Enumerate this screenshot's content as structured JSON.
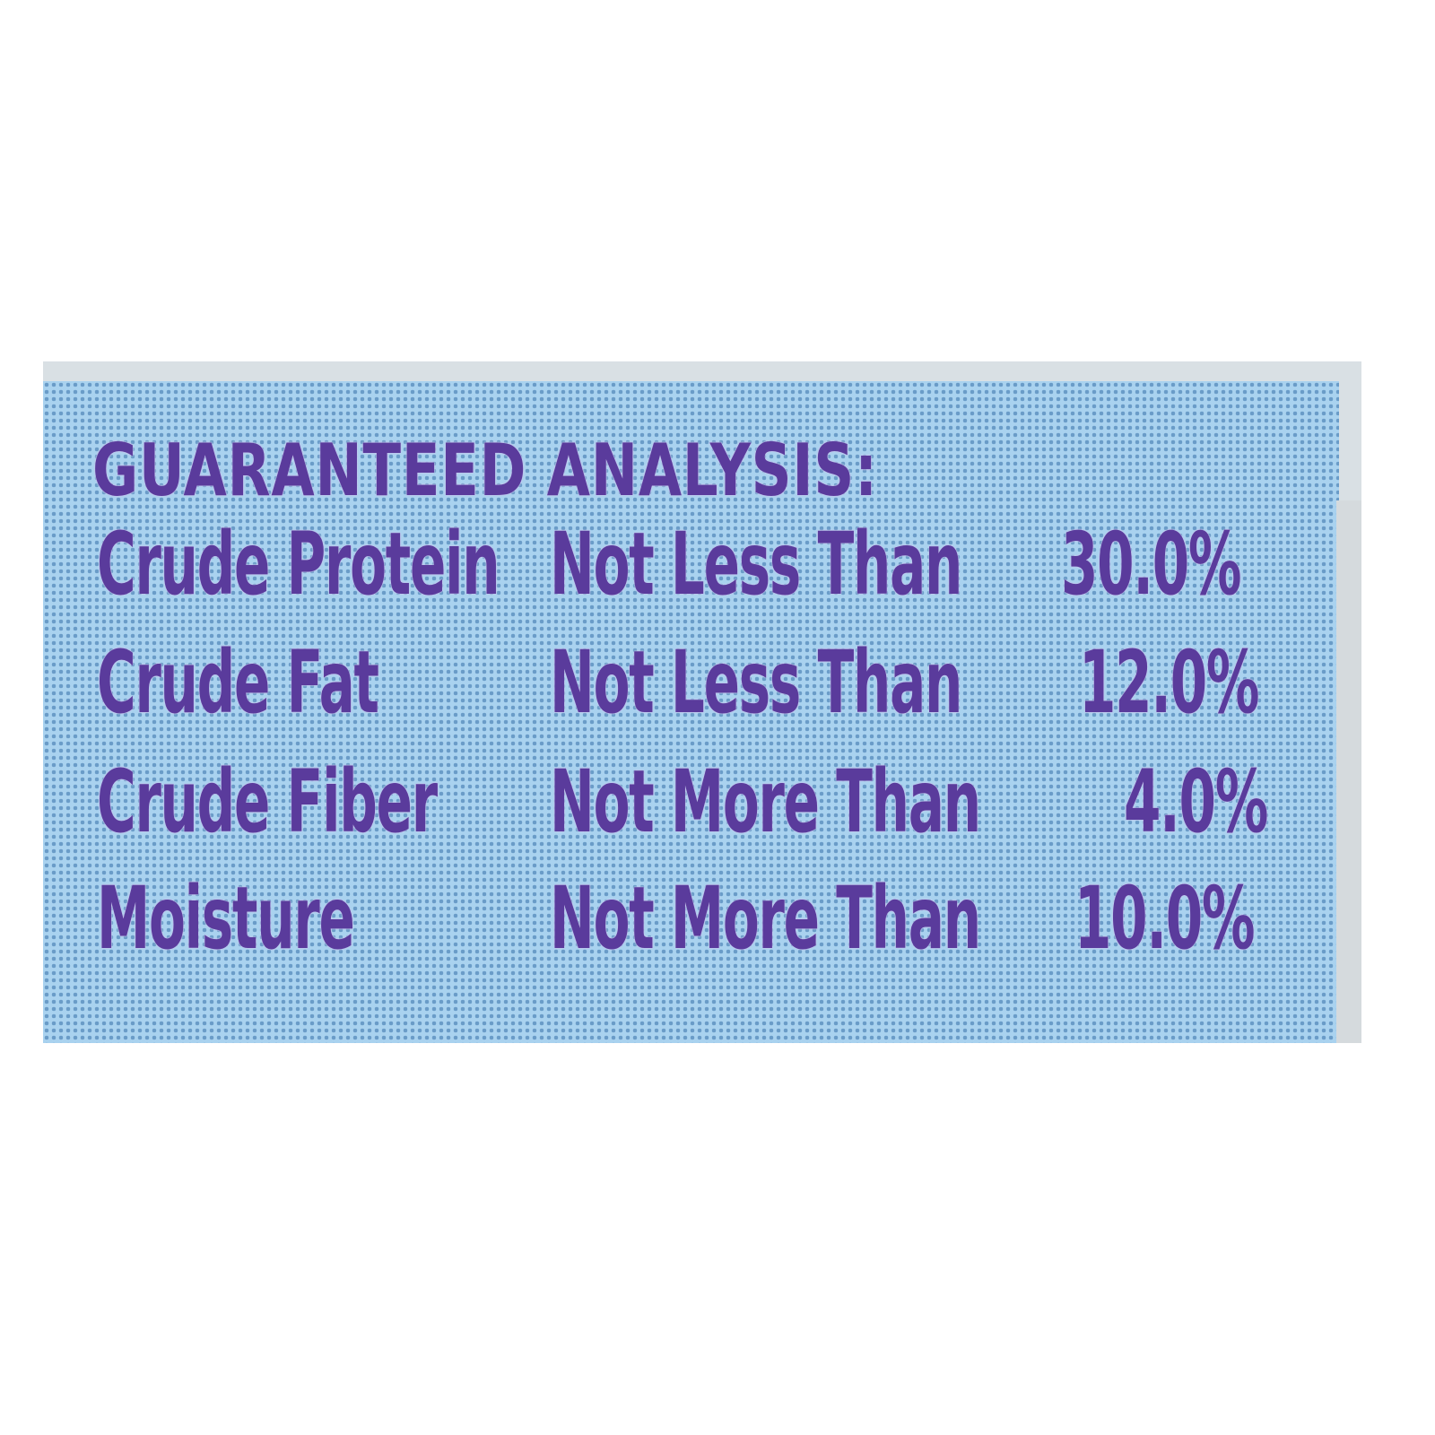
{
  "label": {
    "heading": "GUARANTEED ANALYSIS:",
    "rows": [
      {
        "nutrient": "Crude Protein",
        "qualifier": "Not Less Than",
        "value": "30.0%"
      },
      {
        "nutrient": "Crude Fat",
        "qualifier": "Not Less Than",
        "value": "12.0%"
      },
      {
        "nutrient": "Crude Fiber",
        "qualifier": "Not More Than",
        "value": "4.0%"
      },
      {
        "nutrient": "Moisture",
        "qualifier": "Not More Than",
        "value": "10.0%"
      }
    ],
    "colors": {
      "text": "#5a3b9c",
      "background": "#a9d2ef",
      "dots": "#6a9cc8"
    }
  }
}
